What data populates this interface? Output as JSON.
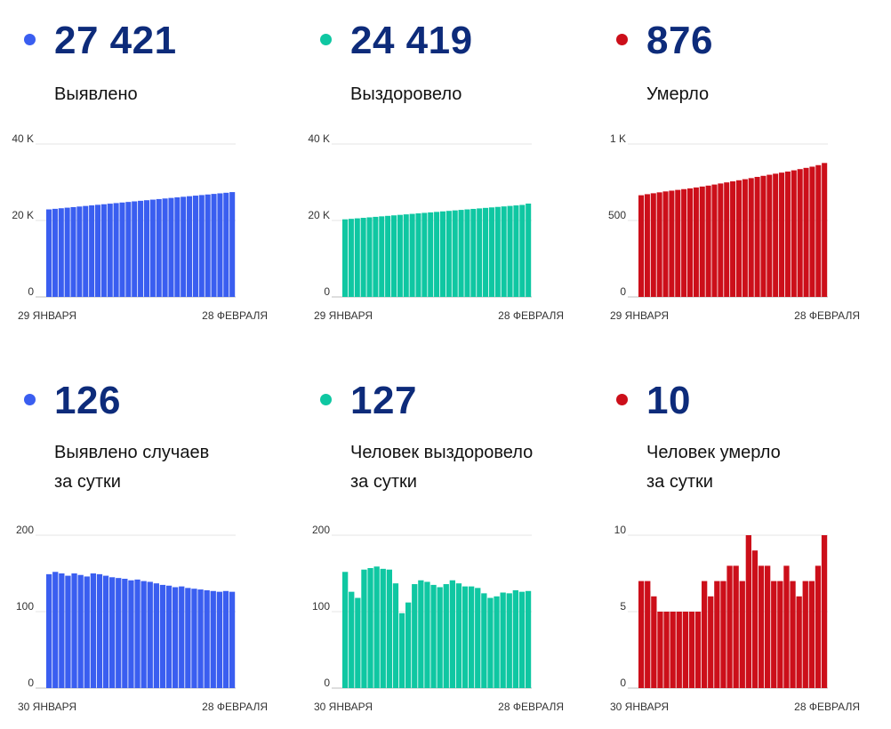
{
  "panels": [
    {
      "value": "27 421",
      "label_lines": [
        "Выявлено"
      ],
      "color": "#3a5ef0",
      "chart_data": {
        "type": "bar",
        "x_start_label": "29 ЯНВАРЯ",
        "x_end_label": "28 ФЕВРАЛЯ",
        "yticks": [
          "0",
          "20 K",
          "40 K"
        ],
        "ylim": [
          0,
          40000
        ],
        "values": [
          22900,
          23050,
          23200,
          23350,
          23500,
          23650,
          23800,
          23950,
          24100,
          24250,
          24400,
          24550,
          24700,
          24850,
          25000,
          25150,
          25300,
          25450,
          25600,
          25750,
          25900,
          26050,
          26200,
          26350,
          26500,
          26650,
          26800,
          26950,
          27100,
          27250,
          27421
        ]
      }
    },
    {
      "value": "24 419",
      "label_lines": [
        "Выздоровело"
      ],
      "color": "#0fc7a2",
      "chart_data": {
        "type": "bar",
        "x_start_label": "29 ЯНВАРЯ",
        "x_end_label": "28 ФЕВРАЛЯ",
        "yticks": [
          "0",
          "20 K",
          "40 K"
        ],
        "ylim": [
          0,
          40000
        ],
        "values": [
          20300,
          20430,
          20560,
          20690,
          20820,
          20950,
          21080,
          21210,
          21340,
          21470,
          21600,
          21730,
          21860,
          21990,
          22120,
          22250,
          22380,
          22510,
          22640,
          22770,
          22900,
          23030,
          23160,
          23290,
          23420,
          23550,
          23680,
          23810,
          23940,
          24070,
          24419
        ]
      }
    },
    {
      "value": "876",
      "label_lines": [
        "Умерло"
      ],
      "color": "#cc0f1a",
      "chart_data": {
        "type": "bar",
        "x_start_label": "29 ЯНВАРЯ",
        "x_end_label": "28 ФЕВРАЛЯ",
        "yticks": [
          "0",
          "500",
          "1 K"
        ],
        "ylim": [
          0,
          1000
        ],
        "values": [
          665,
          672,
          678,
          684,
          690,
          695,
          700,
          705,
          710,
          716,
          722,
          728,
          735,
          742,
          749,
          756,
          763,
          770,
          777,
          785,
          792,
          799,
          806,
          813,
          820,
          828,
          836,
          844,
          852,
          862,
          876
        ]
      }
    },
    {
      "value": "126",
      "label_lines": [
        "Выявлено случаев",
        "за сутки"
      ],
      "color": "#3a5ef0",
      "chart_data": {
        "type": "bar",
        "x_start_label": "30 ЯНВАРЯ",
        "x_end_label": "28 ФЕВРАЛЯ",
        "yticks": [
          "0",
          "100",
          "200"
        ],
        "ylim": [
          0,
          200
        ],
        "values": [
          149,
          152,
          150,
          147,
          150,
          148,
          146,
          150,
          149,
          147,
          145,
          144,
          143,
          141,
          142,
          140,
          139,
          137,
          135,
          134,
          132,
          133,
          131,
          130,
          129,
          128,
          127,
          126,
          127,
          126
        ]
      }
    },
    {
      "value": "127",
      "label_lines": [
        "Человек выздоровело",
        "за сутки"
      ],
      "color": "#0fc7a2",
      "chart_data": {
        "type": "bar",
        "x_start_label": "30 ЯНВАРЯ",
        "x_end_label": "28 ФЕВРАЛЯ",
        "yticks": [
          "0",
          "100",
          "200"
        ],
        "ylim": [
          0,
          200
        ],
        "values": [
          152,
          126,
          118,
          155,
          157,
          159,
          156,
          155,
          137,
          98,
          112,
          136,
          141,
          139,
          135,
          132,
          136,
          141,
          137,
          133,
          133,
          131,
          124,
          118,
          120,
          125,
          124,
          128,
          126,
          127
        ]
      }
    },
    {
      "value": "10",
      "label_lines": [
        "Человек умерло",
        "за сутки"
      ],
      "color": "#cc0f1a",
      "chart_data": {
        "type": "bar",
        "x_start_label": "30 ЯНВАРЯ",
        "x_end_label": "28 ФЕВРАЛЯ",
        "yticks": [
          "0",
          "5",
          "10"
        ],
        "ylim": [
          0,
          10
        ],
        "values": [
          7,
          7,
          6,
          5,
          5,
          5,
          5,
          5,
          5,
          5,
          7,
          6,
          7,
          7,
          8,
          8,
          7,
          10,
          9,
          8,
          8,
          7,
          7,
          8,
          7,
          6,
          7,
          7,
          8,
          10
        ]
      }
    }
  ]
}
